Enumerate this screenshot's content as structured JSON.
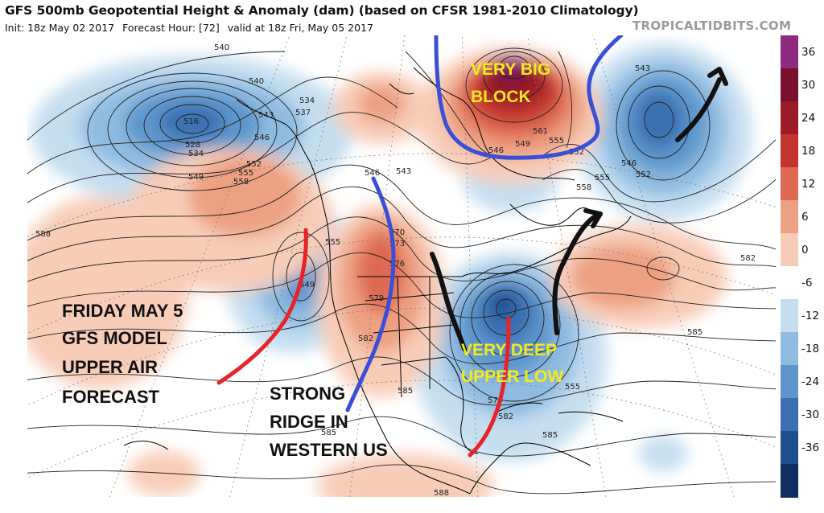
{
  "header": {
    "title": "GFS 500mb Geopotential Height & Anomaly (dam) (based on CFSR 1981-2010 Climatology)",
    "init": "Init: 18z May 02 2017",
    "forecast_hour": "Forecast Hour: [72]",
    "valid": "valid at 18z Fri, May 05 2017"
  },
  "brand": "TROPICALTIDBITS.COM",
  "colorbar": {
    "labels": [
      "36",
      "30",
      "24",
      "18",
      "12",
      "6",
      "0",
      "-6",
      "-12",
      "-18",
      "-24",
      "-30",
      "-36"
    ],
    "colors": [
      "#8b2a7e",
      "#7a1030",
      "#9d1b26",
      "#c4342f",
      "#de6a52",
      "#eea083",
      "#f7cdb8",
      "#ffffff",
      "#c4def0",
      "#8fbbe0",
      "#5d95cc",
      "#3b70b3",
      "#1f4f90",
      "#0f2f62"
    ]
  },
  "annotations": {
    "friday_lines": [
      "FRIDAY MAY 5",
      "GFS MODEL",
      "UPPER AIR",
      "FORECAST"
    ],
    "ridge_lines": [
      "STRONG",
      "RIDGE IN",
      "WESTERN US"
    ],
    "block_lines": [
      "VERY BIG",
      "BLOCK"
    ],
    "low_lines": [
      "VERY DEEP",
      "UPPER LOW"
    ]
  },
  "contour_labels": [
    {
      "text": "540"
    },
    {
      "text": "540"
    },
    {
      "text": "534"
    },
    {
      "text": "537"
    },
    {
      "text": "543"
    },
    {
      "text": "546"
    },
    {
      "text": "516"
    },
    {
      "text": "528"
    },
    {
      "text": "534"
    },
    {
      "text": "549"
    },
    {
      "text": "552"
    },
    {
      "text": "555"
    },
    {
      "text": "558"
    },
    {
      "text": "546"
    },
    {
      "text": "543"
    },
    {
      "text": "588"
    },
    {
      "text": "555"
    },
    {
      "text": "549"
    },
    {
      "text": "570"
    },
    {
      "text": "573"
    },
    {
      "text": "576"
    },
    {
      "text": "579"
    },
    {
      "text": "582"
    },
    {
      "text": "585"
    },
    {
      "text": "585"
    },
    {
      "text": "579"
    },
    {
      "text": "582"
    },
    {
      "text": "585"
    },
    {
      "text": "588"
    },
    {
      "text": "543"
    },
    {
      "text": "546"
    },
    {
      "text": "552"
    },
    {
      "text": "555"
    },
    {
      "text": "558"
    },
    {
      "text": "561"
    },
    {
      "text": "555"
    },
    {
      "text": "552"
    },
    {
      "text": "549"
    },
    {
      "text": "546"
    },
    {
      "text": "582"
    },
    {
      "text": "585"
    },
    {
      "text": "555"
    }
  ],
  "colors": {
    "red_arrow": "#e8232a",
    "blue_arrow": "#3a4fd6",
    "black_arrow": "#111111",
    "annotation_yellow": "#f5ea1a"
  }
}
